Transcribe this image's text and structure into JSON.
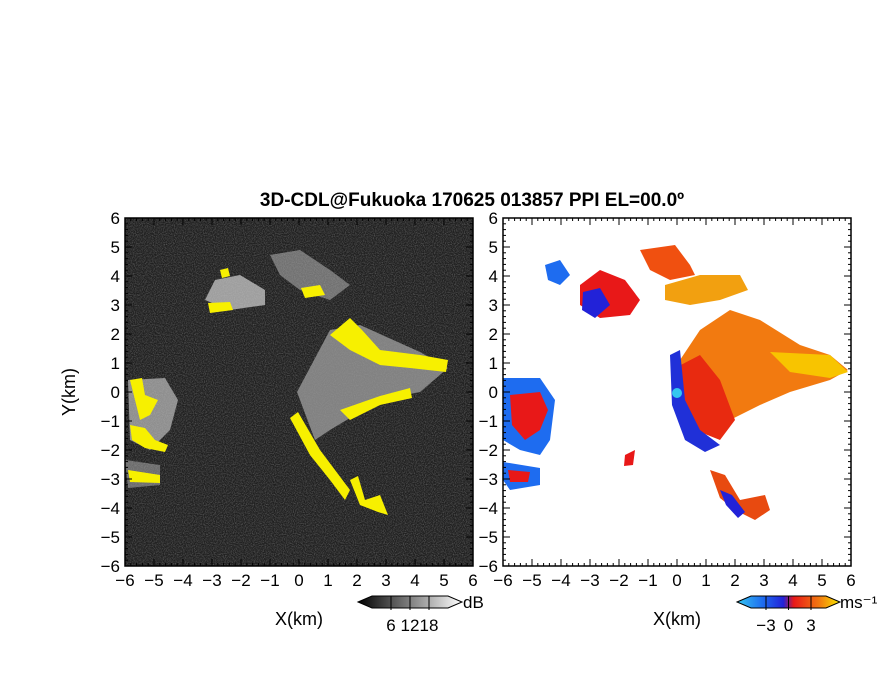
{
  "title": "3D-CDL@Fukuoka 170625 013857 PPI EL=00.0º",
  "chart_data": [
    {
      "type": "heatmap",
      "panel": "reflectivity",
      "title": "",
      "xlabel": "X(km)",
      "ylabel": "Y(km)",
      "xlim": [
        -6,
        6
      ],
      "ylim": [
        -6,
        6
      ],
      "xticks": [
        "−6",
        "−5",
        "−4",
        "−3",
        "−2",
        "−1",
        "0",
        "1",
        "2",
        "3",
        "4",
        "5",
        "6"
      ],
      "yticks": [
        "6",
        "5",
        "4",
        "3",
        "2",
        "1",
        "0",
        "−1",
        "−2",
        "−3",
        "−4",
        "−5",
        "−6"
      ],
      "background_color": "#202020",
      "highlight_color": "#f7f000",
      "colorbar": {
        "label": "dB",
        "ticks": [
          "6",
          "12",
          "18"
        ],
        "range": [
          0,
          24
        ],
        "colormap": "grayscale"
      }
    },
    {
      "type": "heatmap",
      "panel": "doppler_velocity",
      "title": "",
      "xlabel": "X(km)",
      "ylabel": "",
      "xlim": [
        -6,
        6
      ],
      "ylim": [
        -6,
        6
      ],
      "xticks": [
        "−6",
        "−5",
        "−4",
        "−3",
        "−2",
        "−1",
        "0",
        "1",
        "2",
        "3",
        "4",
        "5",
        "6"
      ],
      "yticks": [
        "6",
        "5",
        "4",
        "3",
        "2",
        "1",
        "0",
        "−1",
        "−2",
        "−3",
        "−4",
        "−5",
        "−6"
      ],
      "background_color": "#ffffff",
      "colorbar": {
        "label": "ms⁻¹",
        "ticks": [
          "−3",
          "0",
          "3"
        ],
        "range": [
          -5,
          5
        ],
        "colors": [
          "#35c6f0",
          "#1e6cf0",
          "#2222d8",
          "#e81818",
          "#f27a10",
          "#f8e800"
        ]
      }
    }
  ]
}
